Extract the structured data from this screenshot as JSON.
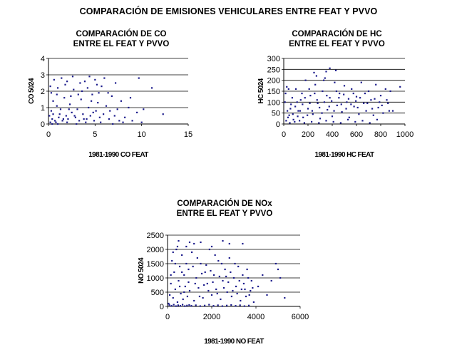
{
  "page_title": "COMPARACIÓN DE EMISIONES VEHICULARES ENTRE FEAT Y PVVO",
  "colors": {
    "points": "#1c1c8c",
    "grid": "#000000",
    "axis": "#000000"
  },
  "chart_data": [
    {
      "type": "scatter",
      "title_lines": [
        "COMPARACIÓN DE CO",
        "ENTRE EL FEAT Y PVVO"
      ],
      "xlabel": "1981-1990 CO FEAT",
      "ylabel": "CO 5024",
      "xlim": [
        0,
        15
      ],
      "ylim": [
        0,
        4
      ],
      "x_ticks": [
        "0",
        "5",
        "10",
        "15"
      ],
      "y_ticks": [
        "0",
        "1",
        "2",
        "3",
        "4"
      ],
      "grid": "horizontal",
      "legend": "none",
      "points": [
        [
          0.2,
          0.1
        ],
        [
          0.4,
          0.3
        ],
        [
          0.5,
          0.6
        ],
        [
          0.7,
          0.2
        ],
        [
          0.9,
          1.1
        ],
        [
          1.1,
          0.4
        ],
        [
          1.3,
          0.9
        ],
        [
          1.5,
          0.2
        ],
        [
          1.7,
          1.6
        ],
        [
          1.9,
          0.5
        ],
        [
          2.1,
          0.3
        ],
        [
          2.3,
          1.2
        ],
        [
          2.5,
          0.7
        ],
        [
          2.7,
          2.1
        ],
        [
          2.9,
          0.4
        ],
        [
          3.1,
          0.9
        ],
        [
          3.3,
          0.2
        ],
        [
          3.5,
          1.5
        ],
        [
          3.7,
          0.6
        ],
        [
          3.9,
          2.6
        ],
        [
          4.1,
          0.3
        ],
        [
          4.3,
          1.0
        ],
        [
          4.5,
          0.5
        ],
        [
          4.7,
          1.8
        ],
        [
          4.9,
          0.2
        ],
        [
          5.1,
          0.8
        ],
        [
          5.3,
          1.3
        ],
        [
          5.5,
          0.4
        ],
        [
          5.7,
          2.3
        ],
        [
          5.9,
          0.6
        ],
        [
          6.2,
          1.1
        ],
        [
          6.5,
          0.3
        ],
        [
          6.8,
          1.7
        ],
        [
          7.1,
          0.5
        ],
        [
          7.4,
          0.9
        ],
        [
          7.8,
          1.4
        ],
        [
          8.2,
          0.4
        ],
        [
          8.6,
          1.0
        ],
        [
          9.0,
          0.2
        ],
        [
          9.5,
          0.7
        ],
        [
          10.2,
          0.9
        ],
        [
          11.1,
          2.2
        ],
        [
          12.3,
          0.6
        ],
        [
          0.3,
          1.9
        ],
        [
          0.6,
          2.7
        ],
        [
          1.0,
          2.2
        ],
        [
          1.4,
          2.8
        ],
        [
          2.0,
          2.6
        ],
        [
          2.6,
          2.9
        ],
        [
          3.4,
          2.5
        ],
        [
          4.4,
          2.9
        ],
        [
          5.0,
          2.7
        ],
        [
          6.0,
          2.8
        ],
        [
          9.7,
          2.8
        ],
        [
          0.1,
          0.5
        ],
        [
          0.3,
          0.8
        ],
        [
          0.8,
          0.1
        ],
        [
          1.2,
          0.6
        ],
        [
          1.6,
          0.3
        ],
        [
          2.2,
          0.9
        ],
        [
          2.8,
          0.5
        ],
        [
          3.2,
          1.8
        ],
        [
          3.8,
          0.3
        ],
        [
          4.2,
          2.2
        ],
        [
          4.8,
          0.7
        ],
        [
          5.4,
          1.9
        ],
        [
          6.6,
          0.8
        ],
        [
          7.6,
          0.2
        ],
        [
          8.8,
          1.6
        ],
        [
          0.5,
          1.4
        ],
        [
          0.9,
          1.8
        ],
        [
          1.8,
          2.4
        ],
        [
          2.4,
          1.7
        ],
        [
          3.6,
          2.0
        ],
        [
          4.6,
          1.4
        ],
        [
          5.2,
          2.4
        ],
        [
          6.4,
          1.9
        ],
        [
          7.2,
          2.5
        ],
        [
          0.2,
          2.3
        ],
        [
          0.4,
          0.0
        ],
        [
          1.0,
          0.0
        ],
        [
          2.0,
          0.1
        ],
        [
          3.0,
          0.0
        ],
        [
          4.0,
          0.1
        ],
        [
          5.6,
          0.1
        ],
        [
          6.9,
          0.0
        ],
        [
          8.0,
          0.1
        ],
        [
          10.0,
          0.1
        ]
      ]
    },
    {
      "type": "scatter",
      "title_lines": [
        "COMPARACIÓN DE HC",
        "ENTRE EL FEAT Y PVVO"
      ],
      "xlabel": "1981-1990 HC FEAT",
      "ylabel": "HC 5024",
      "xlim": [
        0,
        1000
      ],
      "ylim": [
        0,
        300
      ],
      "x_ticks": [
        "0",
        "200",
        "400",
        "600",
        "800",
        "1000"
      ],
      "y_ticks": [
        "0",
        "50",
        "100",
        "150",
        "200",
        "250",
        "300"
      ],
      "grid": "horizontal",
      "legend": "none",
      "points": [
        [
          20,
          15
        ],
        [
          45,
          40
        ],
        [
          60,
          90
        ],
        [
          80,
          20
        ],
        [
          100,
          160
        ],
        [
          120,
          60
        ],
        [
          140,
          110
        ],
        [
          160,
          30
        ],
        [
          180,
          200
        ],
        [
          200,
          70
        ],
        [
          220,
          130
        ],
        [
          240,
          45
        ],
        [
          260,
          180
        ],
        [
          280,
          95
        ],
        [
          300,
          25
        ],
        [
          320,
          150
        ],
        [
          340,
          210
        ],
        [
          360,
          65
        ],
        [
          380,
          120
        ],
        [
          400,
          35
        ],
        [
          420,
          190
        ],
        [
          440,
          85
        ],
        [
          460,
          140
        ],
        [
          480,
          55
        ],
        [
          500,
          175
        ],
        [
          520,
          100
        ],
        [
          540,
          30
        ],
        [
          560,
          160
        ],
        [
          580,
          80
        ],
        [
          600,
          125
        ],
        [
          620,
          45
        ],
        [
          640,
          190
        ],
        [
          660,
          95
        ],
        [
          680,
          60
        ],
        [
          700,
          150
        ],
        [
          720,
          110
        ],
        [
          740,
          40
        ],
        [
          760,
          180
        ],
        [
          780,
          75
        ],
        [
          800,
          130
        ],
        [
          820,
          50
        ],
        [
          840,
          160
        ],
        [
          860,
          95
        ],
        [
          880,
          150
        ],
        [
          900,
          60
        ],
        [
          960,
          170
        ],
        [
          380,
          255
        ],
        [
          350,
          240
        ],
        [
          250,
          235
        ],
        [
          430,
          245
        ],
        [
          330,
          200
        ],
        [
          270,
          220
        ],
        [
          210,
          160
        ],
        [
          150,
          140
        ],
        [
          110,
          100
        ],
        [
          70,
          120
        ],
        [
          40,
          160
        ],
        [
          30,
          60
        ],
        [
          50,
          5
        ],
        [
          90,
          10
        ],
        [
          130,
          15
        ],
        [
          170,
          5
        ],
        [
          230,
          10
        ],
        [
          290,
          5
        ],
        [
          350,
          15
        ],
        [
          410,
          10
        ],
        [
          470,
          5
        ],
        [
          530,
          20
        ],
        [
          590,
          10
        ],
        [
          650,
          15
        ],
        [
          710,
          5
        ],
        [
          770,
          20
        ],
        [
          10,
          100
        ],
        [
          15,
          140
        ],
        [
          25,
          170
        ],
        [
          35,
          30
        ],
        [
          55,
          70
        ],
        [
          75,
          45
        ],
        [
          95,
          80
        ],
        [
          115,
          35
        ],
        [
          135,
          60
        ],
        [
          155,
          90
        ],
        [
          175,
          120
        ],
        [
          195,
          40
        ],
        [
          215,
          95
        ],
        [
          235,
          60
        ],
        [
          255,
          140
        ],
        [
          275,
          110
        ],
        [
          295,
          75
        ],
        [
          315,
          50
        ],
        [
          335,
          100
        ],
        [
          355,
          130
        ],
        [
          375,
          80
        ],
        [
          395,
          105
        ],
        [
          415,
          60
        ],
        [
          435,
          150
        ],
        [
          455,
          120
        ],
        [
          475,
          90
        ],
        [
          495,
          135
        ],
        [
          515,
          70
        ],
        [
          535,
          115
        ],
        [
          555,
          90
        ],
        [
          575,
          140
        ],
        [
          595,
          105
        ],
        [
          610,
          75
        ],
        [
          630,
          120
        ],
        [
          670,
          140
        ],
        [
          690,
          95
        ],
        [
          730,
          70
        ],
        [
          750,
          115
        ],
        [
          790,
          100
        ],
        [
          810,
          85
        ],
        [
          850,
          110
        ],
        [
          870,
          60
        ]
      ]
    },
    {
      "type": "scatter",
      "title_lines": [
        "COMPARACIÓN DE NOx",
        "ENTRE EL FEAT Y PVVO"
      ],
      "xlabel": "1981-1990 NO FEAT",
      "ylabel": "NO 5024",
      "xlim": [
        0,
        6000
      ],
      "ylim": [
        0,
        2500
      ],
      "x_ticks": [
        "0",
        "2000",
        "4000",
        "6000"
      ],
      "y_ticks": [
        "0",
        "500",
        "1000",
        "1500",
        "2000",
        "2500"
      ],
      "grid": "horizontal",
      "legend": "none",
      "points": [
        [
          50,
          100
        ],
        [
          100,
          400
        ],
        [
          150,
          800
        ],
        [
          200,
          1600
        ],
        [
          250,
          300
        ],
        [
          300,
          1200
        ],
        [
          350,
          600
        ],
        [
          400,
          2000
        ],
        [
          450,
          150
        ],
        [
          500,
          900
        ],
        [
          550,
          1400
        ],
        [
          600,
          450
        ],
        [
          650,
          1800
        ],
        [
          700,
          250
        ],
        [
          750,
          1100
        ],
        [
          800,
          700
        ],
        [
          850,
          2100
        ],
        [
          900,
          350
        ],
        [
          950,
          1300
        ],
        [
          1000,
          550
        ],
        [
          1100,
          1900
        ],
        [
          1200,
          200
        ],
        [
          1300,
          1000
        ],
        [
          1400,
          650
        ],
        [
          1500,
          1500
        ],
        [
          1600,
          300
        ],
        [
          1700,
          1200
        ],
        [
          1800,
          800
        ],
        [
          1900,
          2000
        ],
        [
          2000,
          400
        ],
        [
          2100,
          1100
        ],
        [
          2200,
          600
        ],
        [
          2300,
          1600
        ],
        [
          2400,
          250
        ],
        [
          2500,
          900
        ],
        [
          2600,
          1300
        ],
        [
          2700,
          500
        ],
        [
          2800,
          1700
        ],
        [
          2900,
          350
        ],
        [
          3000,
          1000
        ],
        [
          3100,
          700
        ],
        [
          3200,
          1400
        ],
        [
          3300,
          200
        ],
        [
          3400,
          1100
        ],
        [
          3500,
          600
        ],
        [
          3600,
          1300
        ],
        [
          3700,
          400
        ],
        [
          3800,
          900
        ],
        [
          3900,
          150
        ],
        [
          4100,
          700
        ],
        [
          4300,
          1100
        ],
        [
          4500,
          400
        ],
        [
          4700,
          900
        ],
        [
          4900,
          1500
        ],
        [
          5100,
          1000
        ],
        [
          5300,
          300
        ],
        [
          5000,
          1300
        ],
        [
          1000,
          2250
        ],
        [
          1500,
          2250
        ],
        [
          2000,
          2100
        ],
        [
          2800,
          2200
        ],
        [
          3400,
          2200
        ],
        [
          500,
          2300
        ],
        [
          1200,
          2200
        ],
        [
          2500,
          2300
        ],
        [
          80,
          50
        ],
        [
          180,
          20
        ],
        [
          280,
          60
        ],
        [
          380,
          10
        ],
        [
          480,
          40
        ],
        [
          580,
          20
        ],
        [
          680,
          60
        ],
        [
          780,
          10
        ],
        [
          880,
          30
        ],
        [
          980,
          50
        ],
        [
          1080,
          20
        ],
        [
          1280,
          40
        ],
        [
          1480,
          10
        ],
        [
          1680,
          30
        ],
        [
          1880,
          60
        ],
        [
          2080,
          20
        ],
        [
          2280,
          40
        ],
        [
          2480,
          10
        ],
        [
          2680,
          30
        ],
        [
          2880,
          50
        ],
        [
          3080,
          20
        ],
        [
          3280,
          40
        ],
        [
          3480,
          10
        ],
        [
          3680,
          30
        ],
        [
          150,
          1100
        ],
        [
          250,
          1900
        ],
        [
          350,
          1500
        ],
        [
          450,
          2100
        ],
        [
          550,
          700
        ],
        [
          650,
          1200
        ],
        [
          750,
          500
        ],
        [
          850,
          1500
        ],
        [
          950,
          850
        ],
        [
          1150,
          1400
        ],
        [
          1250,
          800
        ],
        [
          1350,
          1700
        ],
        [
          1450,
          350
        ],
        [
          1550,
          1150
        ],
        [
          1650,
          750
        ],
        [
          1750,
          1450
        ],
        [
          1850,
          550
        ],
        [
          1950,
          1250
        ],
        [
          2050,
          850
        ],
        [
          2150,
          1800
        ],
        [
          2250,
          450
        ],
        [
          2350,
          1050
        ],
        [
          2450,
          1500
        ],
        [
          2550,
          650
        ],
        [
          2650,
          1050
        ],
        [
          2750,
          850
        ],
        [
          2850,
          1200
        ],
        [
          2950,
          550
        ],
        [
          3050,
          1500
        ],
        [
          3150,
          450
        ],
        [
          3250,
          900
        ],
        [
          3350,
          600
        ],
        [
          3450,
          800
        ],
        [
          3550,
          350
        ],
        [
          3650,
          1000
        ],
        [
          3750,
          550
        ],
        [
          3850,
          650
        ]
      ]
    }
  ]
}
